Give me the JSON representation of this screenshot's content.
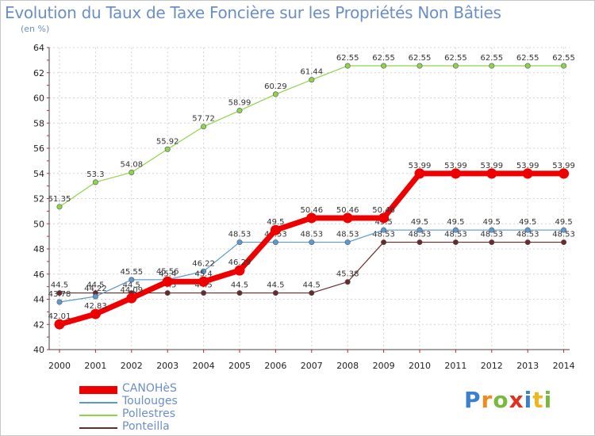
{
  "title": "Evolution du Taux de Taxe Foncière sur les Propriétés Non Bâties",
  "subtitle": "(en %)",
  "logo": {
    "text": "Proxiti",
    "letters": [
      {
        "ch": "P",
        "color": "#3a7fd0"
      },
      {
        "ch": "r",
        "color": "#f08a1c"
      },
      {
        "ch": "o",
        "color": "#7ab840"
      },
      {
        "ch": "x",
        "color": "#e0301e"
      },
      {
        "ch": "i",
        "color": "#3a7fd0"
      },
      {
        "ch": "t",
        "color": "#f0b41c"
      },
      {
        "ch": "i",
        "color": "#7ab840"
      }
    ]
  },
  "chart_data": {
    "type": "line",
    "title": "Evolution du Taux de Taxe Foncière sur les Propriétés Non Bâties",
    "ylabel": "(en %)",
    "xlabel": "",
    "ylim": [
      40,
      64
    ],
    "yticks": [
      "40",
      "42",
      "44",
      "46",
      "48",
      "50",
      "52",
      "54",
      "56",
      "58",
      "60",
      "62",
      "64"
    ],
    "categories": [
      "2000",
      "2001",
      "2002",
      "2003",
      "2004",
      "2005",
      "2006",
      "2007",
      "2008",
      "2009",
      "2010",
      "2011",
      "2012",
      "2013",
      "2014"
    ],
    "grid": true,
    "series": [
      {
        "name": "Ponteilla",
        "color": "#6b2a2a",
        "values": [
          44.5,
          44.5,
          44.5,
          44.5,
          44.5,
          44.5,
          44.5,
          44.5,
          45.38,
          48.53,
          48.53,
          48.53,
          48.53,
          48.53,
          48.53
        ],
        "labels": [
          "44.5",
          "44.5",
          "44.5",
          "44.5",
          "44.5",
          "44.5",
          "44.5",
          "44.5",
          "45.38",
          "48.53",
          "48.53",
          "48.53",
          "48.53",
          "48.53",
          "48.53"
        ]
      },
      {
        "name": "Toulouges",
        "color": "#5a9ad0",
        "values": [
          43.78,
          44.22,
          45.55,
          45.56,
          46.22,
          48.53,
          48.53,
          48.53,
          48.53,
          49.5,
          49.5,
          49.5,
          49.5,
          49.5,
          49.5
        ],
        "labels": [
          "43.78",
          "44.22",
          "45.55",
          "45.56",
          "46.22",
          "48.53",
          "48.53",
          "48.53",
          "48.53",
          "49.5",
          "49.5",
          "49.5",
          "49.5",
          "49.5",
          "49.5"
        ]
      },
      {
        "name": "Pollestres",
        "color": "#8ed44a",
        "values": [
          51.35,
          53.3,
          54.08,
          55.92,
          57.72,
          58.99,
          60.29,
          61.44,
          62.55,
          62.55,
          62.55,
          62.55,
          62.55,
          62.55,
          62.55
        ],
        "labels": [
          "51.35",
          "53.3",
          "54.08",
          "55.92",
          "57.72",
          "58.99",
          "60.29",
          "61.44",
          "62.55",
          "62.55",
          "62.55",
          "62.55",
          "62.55",
          "62.55",
          "62.55"
        ]
      },
      {
        "name": "CANOHèS",
        "color": "#ee0000",
        "values": [
          42.01,
          42.83,
          44.09,
          45.4,
          45.4,
          46.29,
          49.5,
          50.46,
          50.46,
          50.46,
          53.99,
          53.99,
          53.99,
          53.99,
          53.99
        ],
        "labels": [
          "42.01",
          "42.83",
          "44.09",
          "45.4",
          "45.4",
          "46.29",
          "49.5",
          "50.46",
          "50.46",
          "50.46",
          "53.99",
          "53.99",
          "53.99",
          "53.99",
          "53.99"
        ]
      }
    ],
    "legend": {
      "placement": "bottom-left",
      "order": [
        "CANOHèS",
        "Toulouges",
        "Pollestres",
        "Ponteilla"
      ]
    }
  }
}
